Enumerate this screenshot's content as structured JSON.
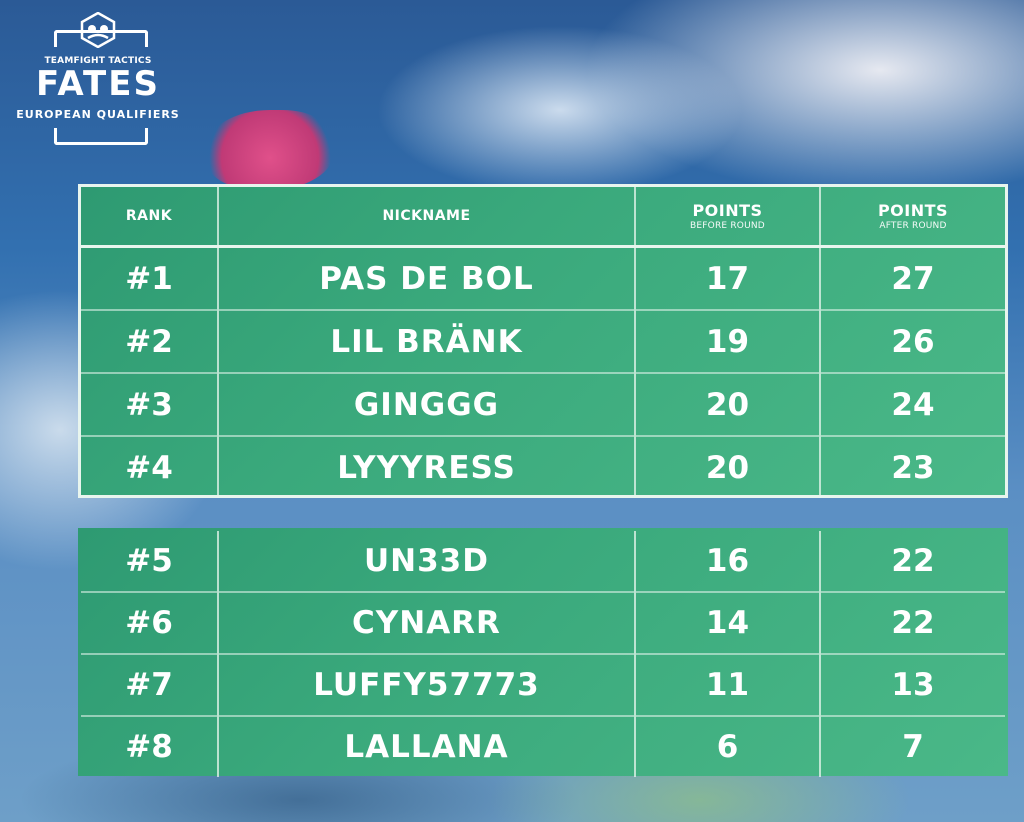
{
  "logo": {
    "subtitle": "TEAMFIGHT TACTICS",
    "title": "FATES",
    "region": "EUROPEAN QUALIFIERS"
  },
  "table": {
    "headers": {
      "rank": "RANK",
      "nickname": "NICKNAME",
      "points_before": "POINTS",
      "points_before_sub": "BEFORE ROUND",
      "points_after": "POINTS",
      "points_after_sub": "AFTER ROUND"
    },
    "rows": [
      {
        "rank": "#1",
        "nickname": "PAS DE BOL",
        "before": "17",
        "after": "27"
      },
      {
        "rank": "#2",
        "nickname": "LIL BRÄNK",
        "before": "19",
        "after": "26"
      },
      {
        "rank": "#3",
        "nickname": "GINGGG",
        "before": "20",
        "after": "24"
      },
      {
        "rank": "#4",
        "nickname": "LYYYRESS",
        "before": "20",
        "after": "23"
      },
      {
        "rank": "#5",
        "nickname": "UN33D",
        "before": "16",
        "after": "22"
      },
      {
        "rank": "#6",
        "nickname": "CYNARR",
        "before": "14",
        "after": "22"
      },
      {
        "rank": "#7",
        "nickname": "LUFFY57773",
        "before": "11",
        "after": "13"
      },
      {
        "rank": "#8",
        "nickname": "LALLANA",
        "before": "6",
        "after": "7"
      }
    ]
  },
  "colors": {
    "panel": "#3aa97c",
    "border": "#e8f5ee",
    "sky": "#3270b0"
  }
}
